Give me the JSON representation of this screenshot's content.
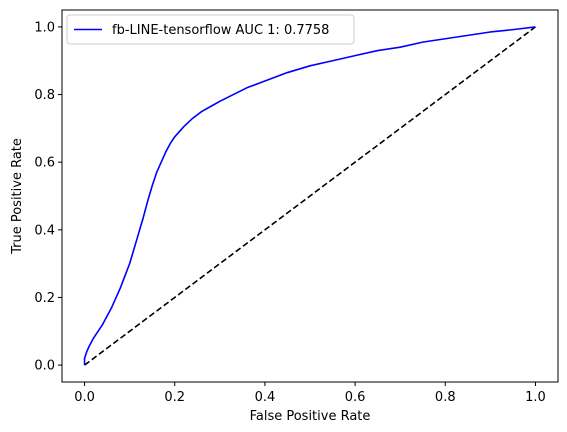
{
  "chart_data": {
    "type": "line",
    "title": "",
    "xlabel": "False Positive Rate",
    "ylabel": "True Positive Rate",
    "xlim": [
      -0.05,
      1.05
    ],
    "ylim": [
      -0.05,
      1.05
    ],
    "xticks": [
      0.0,
      0.2,
      0.4,
      0.6,
      0.8,
      1.0
    ],
    "yticks": [
      0.0,
      0.2,
      0.4,
      0.6,
      0.8,
      1.0
    ],
    "xtick_labels": [
      "0.0",
      "0.2",
      "0.4",
      "0.6",
      "0.8",
      "1.0"
    ],
    "ytick_labels": [
      "0.0",
      "0.2",
      "0.4",
      "0.6",
      "0.8",
      "1.0"
    ],
    "grid": false,
    "legend_position": "top-left",
    "series": [
      {
        "name": "fb-LINE-tensorflow AUC 1: 0.7758",
        "color": "#0000ff",
        "style": "solid",
        "x": [
          0.0,
          0.0,
          0.005,
          0.01,
          0.02,
          0.03,
          0.04,
          0.05,
          0.06,
          0.07,
          0.08,
          0.09,
          0.1,
          0.11,
          0.12,
          0.13,
          0.14,
          0.15,
          0.16,
          0.17,
          0.18,
          0.19,
          0.2,
          0.22,
          0.24,
          0.26,
          0.28,
          0.3,
          0.33,
          0.36,
          0.4,
          0.45,
          0.5,
          0.55,
          0.6,
          0.65,
          0.7,
          0.75,
          0.8,
          0.85,
          0.9,
          0.95,
          1.0
        ],
        "y": [
          0.0,
          0.02,
          0.04,
          0.055,
          0.08,
          0.1,
          0.12,
          0.145,
          0.17,
          0.2,
          0.23,
          0.265,
          0.3,
          0.345,
          0.39,
          0.435,
          0.485,
          0.53,
          0.57,
          0.6,
          0.63,
          0.655,
          0.675,
          0.705,
          0.73,
          0.75,
          0.765,
          0.78,
          0.8,
          0.82,
          0.84,
          0.865,
          0.885,
          0.9,
          0.915,
          0.93,
          0.94,
          0.955,
          0.965,
          0.975,
          0.985,
          0.992,
          1.0
        ]
      },
      {
        "name": "",
        "color": "#000000",
        "style": "dashed",
        "x": [
          0.0,
          1.0
        ],
        "y": [
          0.0,
          1.0
        ]
      }
    ]
  }
}
